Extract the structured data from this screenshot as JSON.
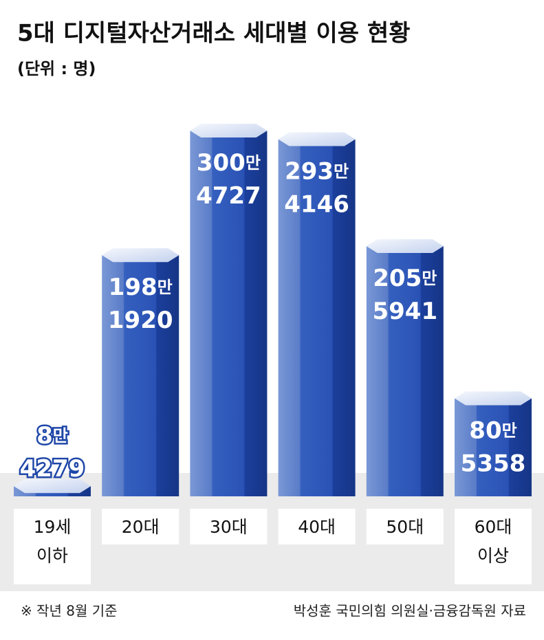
{
  "chart_data": {
    "type": "bar",
    "title": "5대 디지털자산거래소 세대별 이용 현황",
    "subtitle": "(단위 : 명)",
    "categories": [
      "19세 이하",
      "20대",
      "30대",
      "40대",
      "50대",
      "60대 이상"
    ],
    "values": [
      84279,
      1981920,
      3004727,
      2934146,
      2055941,
      805358
    ],
    "value_labels": [
      "8만 4279",
      "198만 1920",
      "300만 4727",
      "293만 4146",
      "205만 5941",
      "80만 5358"
    ],
    "color": "#2a52b5",
    "note": "※ 작년 8월 기준",
    "source": "박성훈 국민의힘 의원실·금융감독원 자료"
  }
}
